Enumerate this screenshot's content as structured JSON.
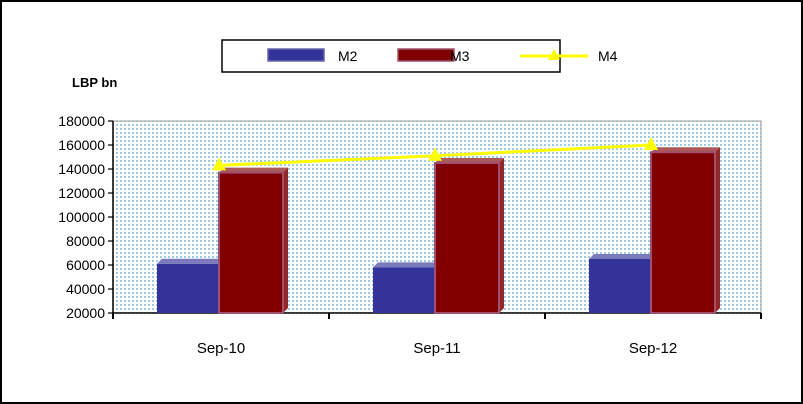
{
  "chart_data": {
    "type": "bar",
    "ylabel": "LBP bn",
    "categories": [
      "Sep-10",
      "Sep-11",
      "Sep-12"
    ],
    "ylim": [
      20000,
      180000
    ],
    "yticks": [
      20000,
      40000,
      60000,
      80000,
      100000,
      120000,
      140000,
      160000,
      180000
    ],
    "grid": false,
    "legend_position": "top",
    "series": [
      {
        "name": "M2",
        "kind": "bar",
        "color": "#333399",
        "values": [
          61000,
          58000,
          65000
        ]
      },
      {
        "name": "M3",
        "kind": "bar",
        "color": "#800000",
        "values": [
          137000,
          145000,
          154000
        ]
      },
      {
        "name": "M4",
        "kind": "line",
        "color": "#ffff00",
        "values": [
          143000,
          151000,
          160000
        ]
      }
    ]
  }
}
